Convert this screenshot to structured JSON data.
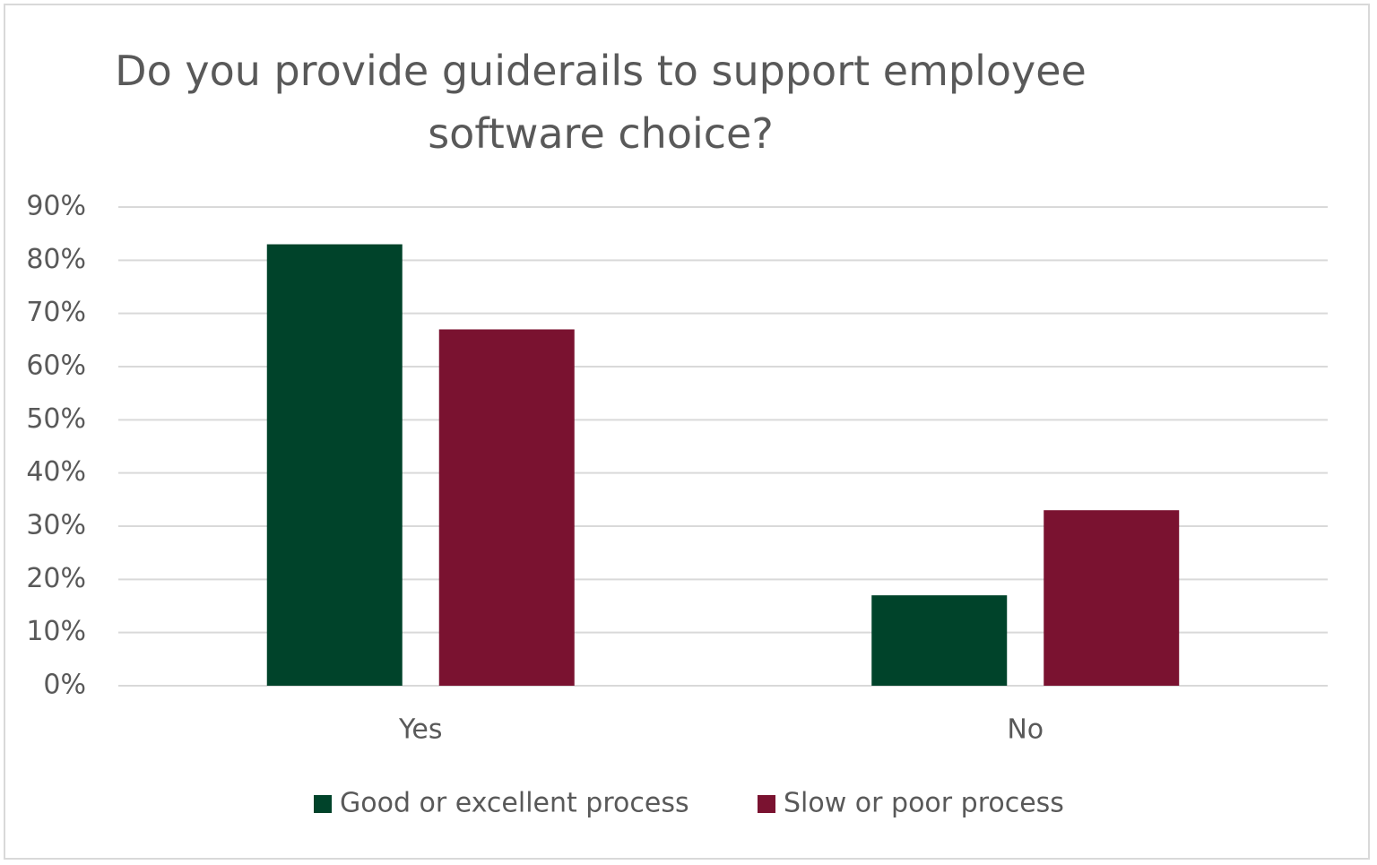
{
  "chart_data": {
    "type": "bar",
    "title": "Do you provide guiderails to support employee software choice?",
    "categories": [
      "Yes",
      "No"
    ],
    "series": [
      {
        "name": "Good or excellent process",
        "color": "#00432a",
        "values": [
          83,
          17
        ]
      },
      {
        "name": "Slow or poor process",
        "color": "#7a1230",
        "values": [
          67,
          33
        ]
      }
    ],
    "ylim": [
      0,
      90
    ],
    "yticks": [
      {
        "value": 0,
        "label": "0%"
      },
      {
        "value": 10,
        "label": "10%"
      },
      {
        "value": 20,
        "label": "20%"
      },
      {
        "value": 30,
        "label": "30%"
      },
      {
        "value": 40,
        "label": "40%"
      },
      {
        "value": 50,
        "label": "50%"
      },
      {
        "value": 60,
        "label": "60%"
      },
      {
        "value": 70,
        "label": "70%"
      },
      {
        "value": 80,
        "label": "80%"
      },
      {
        "value": 90,
        "label": "90%"
      }
    ],
    "grid": true,
    "legend": "bottom"
  }
}
